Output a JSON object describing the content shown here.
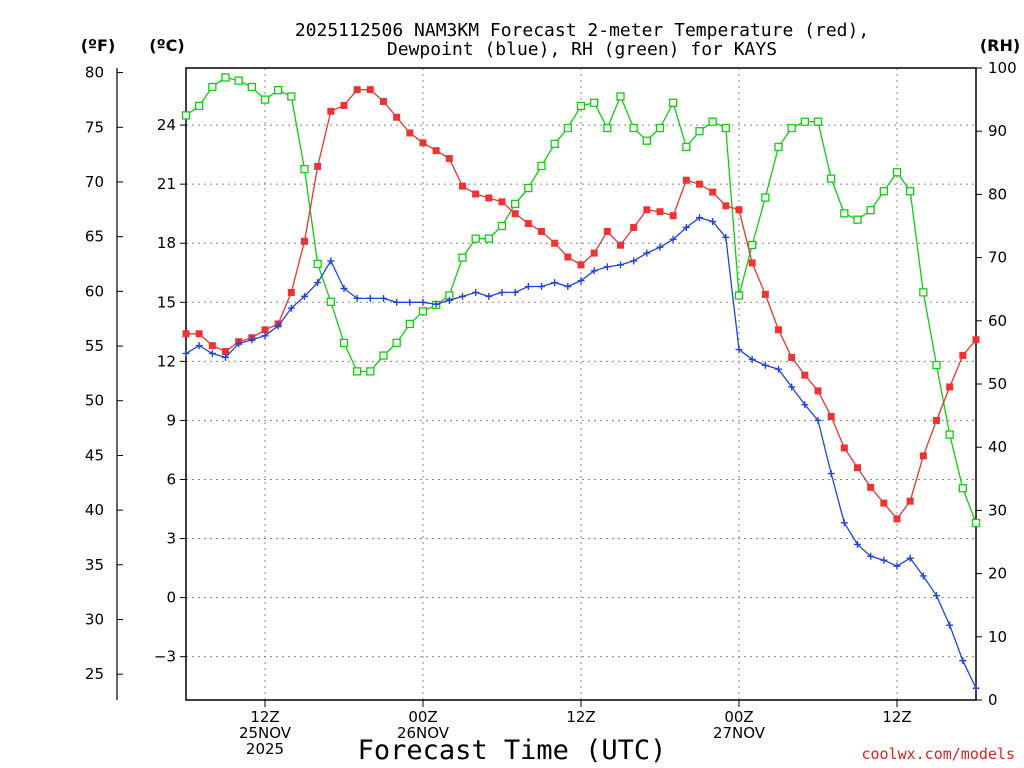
{
  "chart_data": {
    "type": "line",
    "title_lines": [
      "2025112506 NAM3KM Forecast 2-meter Temperature (red),",
      "Dewpoint (blue), RH (green) for KAYS"
    ],
    "xlabel": "Forecast Time (UTC)",
    "credit": "coolwx.com/models",
    "colors": {
      "temperature": "#ee3333",
      "dewpoint": "#2244dd",
      "rh": "#11cc11",
      "credit": "#dd2222"
    },
    "axes": {
      "fahrenheit": {
        "unit_label": "(ºF)",
        "ticks": [
          "80",
          "75",
          "70",
          "65",
          "60",
          "55",
          "50",
          "45",
          "40",
          "35",
          "30",
          "25"
        ],
        "range": [
          22.64,
          80.42
        ]
      },
      "celsius": {
        "unit_label": "(ºC)",
        "ticks": [
          "24",
          "21",
          "18",
          "15",
          "12",
          "9",
          "6",
          "3",
          "0",
          "−3"
        ],
        "range": [
          -5.2,
          26.9
        ]
      },
      "rh": {
        "unit_label": "(RH)",
        "ticks": [
          "100",
          "90",
          "80",
          "70",
          "60",
          "50",
          "40",
          "30",
          "20",
          "10",
          "0"
        ],
        "range": [
          0,
          100
        ]
      },
      "x": {
        "range_hours": [
          0,
          60
        ],
        "ticks": [
          {
            "hour": 6,
            "lines": [
              "12Z",
              "25NOV",
              "2025"
            ]
          },
          {
            "hour": 18,
            "lines": [
              "00Z",
              "26NOV"
            ]
          },
          {
            "hour": 30,
            "lines": [
              "12Z"
            ]
          },
          {
            "hour": 42,
            "lines": [
              "00Z",
              "27NOV"
            ]
          },
          {
            "hour": 54,
            "lines": [
              "12Z"
            ]
          }
        ]
      }
    },
    "series": [
      {
        "name": "Temperature (red)",
        "unit": "C",
        "marker": "filled-square",
        "x": [
          0,
          1,
          2,
          3,
          4,
          5,
          6,
          7,
          8,
          9,
          10,
          11,
          12,
          13,
          14,
          15,
          16,
          17,
          18,
          19,
          20,
          21,
          22,
          23,
          24,
          25,
          26,
          27,
          28,
          29,
          30,
          31,
          32,
          33,
          34,
          35,
          36,
          37,
          38,
          39,
          40,
          41,
          42,
          43,
          44,
          45,
          46,
          47,
          48,
          49,
          50,
          51,
          52,
          53,
          54,
          55,
          56,
          57,
          58,
          59,
          60
        ],
        "values": [
          13.4,
          13.4,
          12.8,
          12.5,
          13.0,
          13.2,
          13.6,
          13.9,
          15.5,
          18.1,
          21.9,
          24.7,
          25.0,
          25.8,
          25.8,
          25.2,
          24.4,
          23.6,
          23.1,
          22.7,
          22.3,
          20.9,
          20.5,
          20.3,
          20.1,
          19.5,
          19.0,
          18.6,
          18.0,
          17.3,
          16.9,
          17.5,
          18.6,
          17.9,
          18.8,
          19.7,
          19.6,
          19.4,
          21.2,
          21.0,
          20.6,
          19.9,
          19.7,
          17.0,
          15.4,
          13.6,
          12.2,
          11.3,
          10.5,
          9.2,
          7.6,
          6.6,
          5.6,
          4.8,
          4.0,
          4.9,
          7.2,
          9.0,
          10.7,
          12.3,
          13.1
        ]
      },
      {
        "name": "Dewpoint (blue)",
        "unit": "C",
        "marker": "plus",
        "x": [
          0,
          1,
          2,
          3,
          4,
          5,
          6,
          7,
          8,
          9,
          10,
          11,
          12,
          13,
          14,
          15,
          16,
          17,
          18,
          19,
          20,
          21,
          22,
          23,
          24,
          25,
          26,
          27,
          28,
          29,
          30,
          31,
          32,
          33,
          34,
          35,
          36,
          37,
          38,
          39,
          40,
          41,
          42,
          43,
          44,
          45,
          46,
          47,
          48,
          49,
          50,
          51,
          52,
          53,
          54,
          55,
          56,
          57,
          58,
          59,
          60
        ],
        "values": [
          12.4,
          12.8,
          12.4,
          12.2,
          12.9,
          13.1,
          13.3,
          13.8,
          14.7,
          15.3,
          16.0,
          17.1,
          15.7,
          15.2,
          15.2,
          15.2,
          15.0,
          15.0,
          15.0,
          14.9,
          15.1,
          15.3,
          15.5,
          15.3,
          15.5,
          15.5,
          15.8,
          15.8,
          16.0,
          15.8,
          16.1,
          16.6,
          16.8,
          16.9,
          17.1,
          17.5,
          17.8,
          18.2,
          18.8,
          19.3,
          19.1,
          18.3,
          12.6,
          12.1,
          11.8,
          11.6,
          10.7,
          9.8,
          9.0,
          6.3,
          3.8,
          2.7,
          2.1,
          1.9,
          1.6,
          2.0,
          1.1,
          0.1,
          -1.4,
          -3.2,
          -4.6
        ]
      },
      {
        "name": "RH (green)",
        "unit": "%",
        "marker": "open-square",
        "x": [
          0,
          1,
          2,
          3,
          4,
          5,
          6,
          7,
          8,
          9,
          10,
          11,
          12,
          13,
          14,
          15,
          16,
          17,
          18,
          19,
          20,
          21,
          22,
          23,
          24,
          25,
          26,
          27,
          28,
          29,
          30,
          31,
          32,
          33,
          34,
          35,
          36,
          37,
          38,
          39,
          40,
          41,
          42,
          43,
          44,
          45,
          46,
          47,
          48,
          49,
          50,
          51,
          52,
          53,
          54,
          55,
          56,
          57,
          58,
          59,
          60
        ],
        "values": [
          92.5,
          94.0,
          97.0,
          98.5,
          98.0,
          97.0,
          95.0,
          96.5,
          95.5,
          84.0,
          69.0,
          63.0,
          56.5,
          52.0,
          52.0,
          54.5,
          56.5,
          59.5,
          61.5,
          62.5,
          64.0,
          70.0,
          73.0,
          73.0,
          75.0,
          78.5,
          81.0,
          84.5,
          88.0,
          90.5,
          94.0,
          94.5,
          90.5,
          95.5,
          90.5,
          88.5,
          90.5,
          94.5,
          87.5,
          90.0,
          91.5,
          90.5,
          64.0,
          72.0,
          79.5,
          87.5,
          90.5,
          91.5,
          91.5,
          82.5,
          77.0,
          76.0,
          77.5,
          80.5,
          83.5,
          80.5,
          64.5,
          53.0,
          42.0,
          33.5,
          28.0
        ]
      }
    ]
  }
}
